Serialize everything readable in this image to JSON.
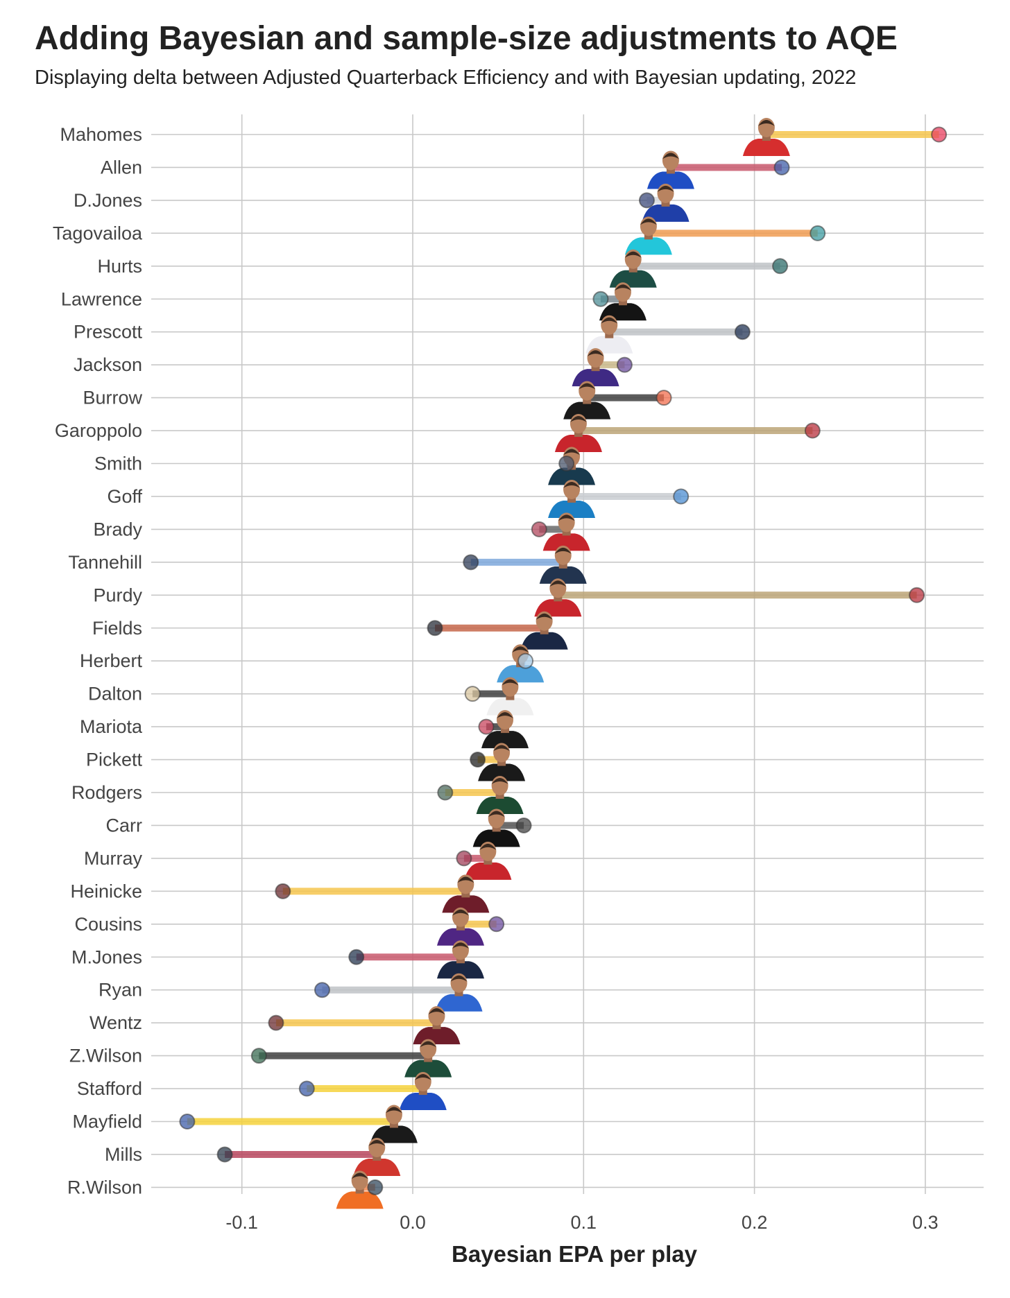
{
  "header": {
    "title": "Adding Bayesian and sample-size adjustments to AQE",
    "subtitle": "Displaying delta between Adjusted Quarterback Efficiency and with Bayesian updating, 2022"
  },
  "chart_data": {
    "type": "dumbbell",
    "title": "Adding Bayesian and sample-size adjustments to AQE",
    "subtitle": "Displaying delta between Adjusted Quarterback Efficiency and with Bayesian updating, 2022",
    "xlabel": "Bayesian EPA per play",
    "ylabel": "",
    "xlim": [
      -0.155,
      0.33
    ],
    "xticks": [
      -0.1,
      0.0,
      0.1,
      0.2,
      0.3
    ],
    "xtick_labels": [
      "-0.1",
      "0.0",
      "0.1",
      "0.2",
      "0.3"
    ],
    "grid": true,
    "categories": [
      "Mahomes",
      "Allen",
      "D.Jones",
      "Tagovailoa",
      "Hurts",
      "Lawrence",
      "Prescott",
      "Jackson",
      "Burrow",
      "Garoppolo",
      "Smith",
      "Goff",
      "Brady",
      "Tannehill",
      "Purdy",
      "Fields",
      "Herbert",
      "Dalton",
      "Mariota",
      "Pickett",
      "Rodgers",
      "Carr",
      "Murray",
      "Heinicke",
      "Cousins",
      "M.Jones",
      "Ryan",
      "Wentz",
      "Z.Wilson",
      "Stafford",
      "Mayfield",
      "Mills",
      "R.Wilson"
    ],
    "series": [
      {
        "values": [
          0.207,
          0.151,
          0.148,
          0.138,
          0.129,
          0.123,
          0.115,
          0.107,
          0.102,
          0.097,
          0.093,
          0.093,
          0.09,
          0.088,
          0.085,
          0.077,
          0.063,
          0.057,
          0.054,
          0.052,
          0.051,
          0.049,
          0.044,
          0.031,
          0.028,
          0.028,
          0.027,
          0.014,
          0.009,
          0.006,
          -0.011,
          -0.021,
          -0.031
        ]
      },
      {
        "values": [
          0.308,
          0.216,
          0.137,
          0.237,
          0.215,
          0.11,
          0.193,
          0.124,
          0.147,
          0.234,
          0.09,
          0.157,
          0.074,
          0.034,
          0.295,
          0.013,
          0.066,
          0.035,
          0.043,
          0.038,
          0.019,
          0.065,
          0.03,
          -0.076,
          0.049,
          -0.033,
          -0.053,
          -0.08,
          -0.09,
          -0.062,
          -0.132,
          -0.11,
          -0.022
        ]
      }
    ],
    "segment_colors": [
      "#F6C64E",
      "#C8586C",
      "#D7DBE0",
      "#F09C52",
      "#BFC3C7",
      "#7C8A90",
      "#BFC3C7",
      "#C9B98A",
      "#3F3F3F",
      "#BCA577",
      "#8A8A8A",
      "#C9CDD1",
      "#6A6A6A",
      "#7EA8DC",
      "#BCA577",
      "#C5664A",
      "#A9CDEA",
      "#3F3F3F",
      "#3F3F3F",
      "#F6C64E",
      "#F6C64E",
      "#555555",
      "#C8586C",
      "#F6C64E",
      "#F6C64E",
      "#C8586C",
      "#BFC3C7",
      "#F6C64E",
      "#3F3F3F",
      "#F6D23C",
      "#F6D23C",
      "#B8475E",
      "#F08A52"
    ],
    "dot_colors": [
      "#E8405F",
      "#3F5EA8",
      "#3C4A7A",
      "#3D9CA2",
      "#2F6E6B",
      "#4D8D96",
      "#233456",
      "#6C4E9E",
      "#F26D4E",
      "#B8323E",
      "#49566B",
      "#4C8DD1",
      "#B2485E",
      "#2F3C57",
      "#B8323E",
      "#2A2F3A",
      "#A9CDEA",
      "#D8C6A0",
      "#C8465E",
      "#222222",
      "#4E6B5D",
      "#444444",
      "#A0405A",
      "#6B2C30",
      "#6C4E9E",
      "#253750",
      "#3F5EA8",
      "#6B2C30",
      "#3A6B52",
      "#3F5EA8",
      "#3F5EA8",
      "#2F3C4C",
      "#334A5E"
    ],
    "avatar_colors": [
      "#D62E2E",
      "#1F4EC4",
      "#1F3FA8",
      "#23C6DA",
      "#1D4D44",
      "#141414",
      "#EDEDF2",
      "#3F2A84",
      "#1A1A1A",
      "#C8252C",
      "#183A4E",
      "#1B7FC4",
      "#C8252C",
      "#22344F",
      "#C8252C",
      "#1A2744",
      "#4DA0DA",
      "#F0F0F0",
      "#1A1A1A",
      "#1A1A1A",
      "#1C4B32",
      "#121212",
      "#C8252C",
      "#6E1D2A",
      "#4F2683",
      "#1A2744",
      "#2F66D1",
      "#6E1D2A",
      "#1D4D3A",
      "#1F4EC4",
      "#1A1A1A",
      "#D0362E",
      "#F06E24"
    ]
  }
}
